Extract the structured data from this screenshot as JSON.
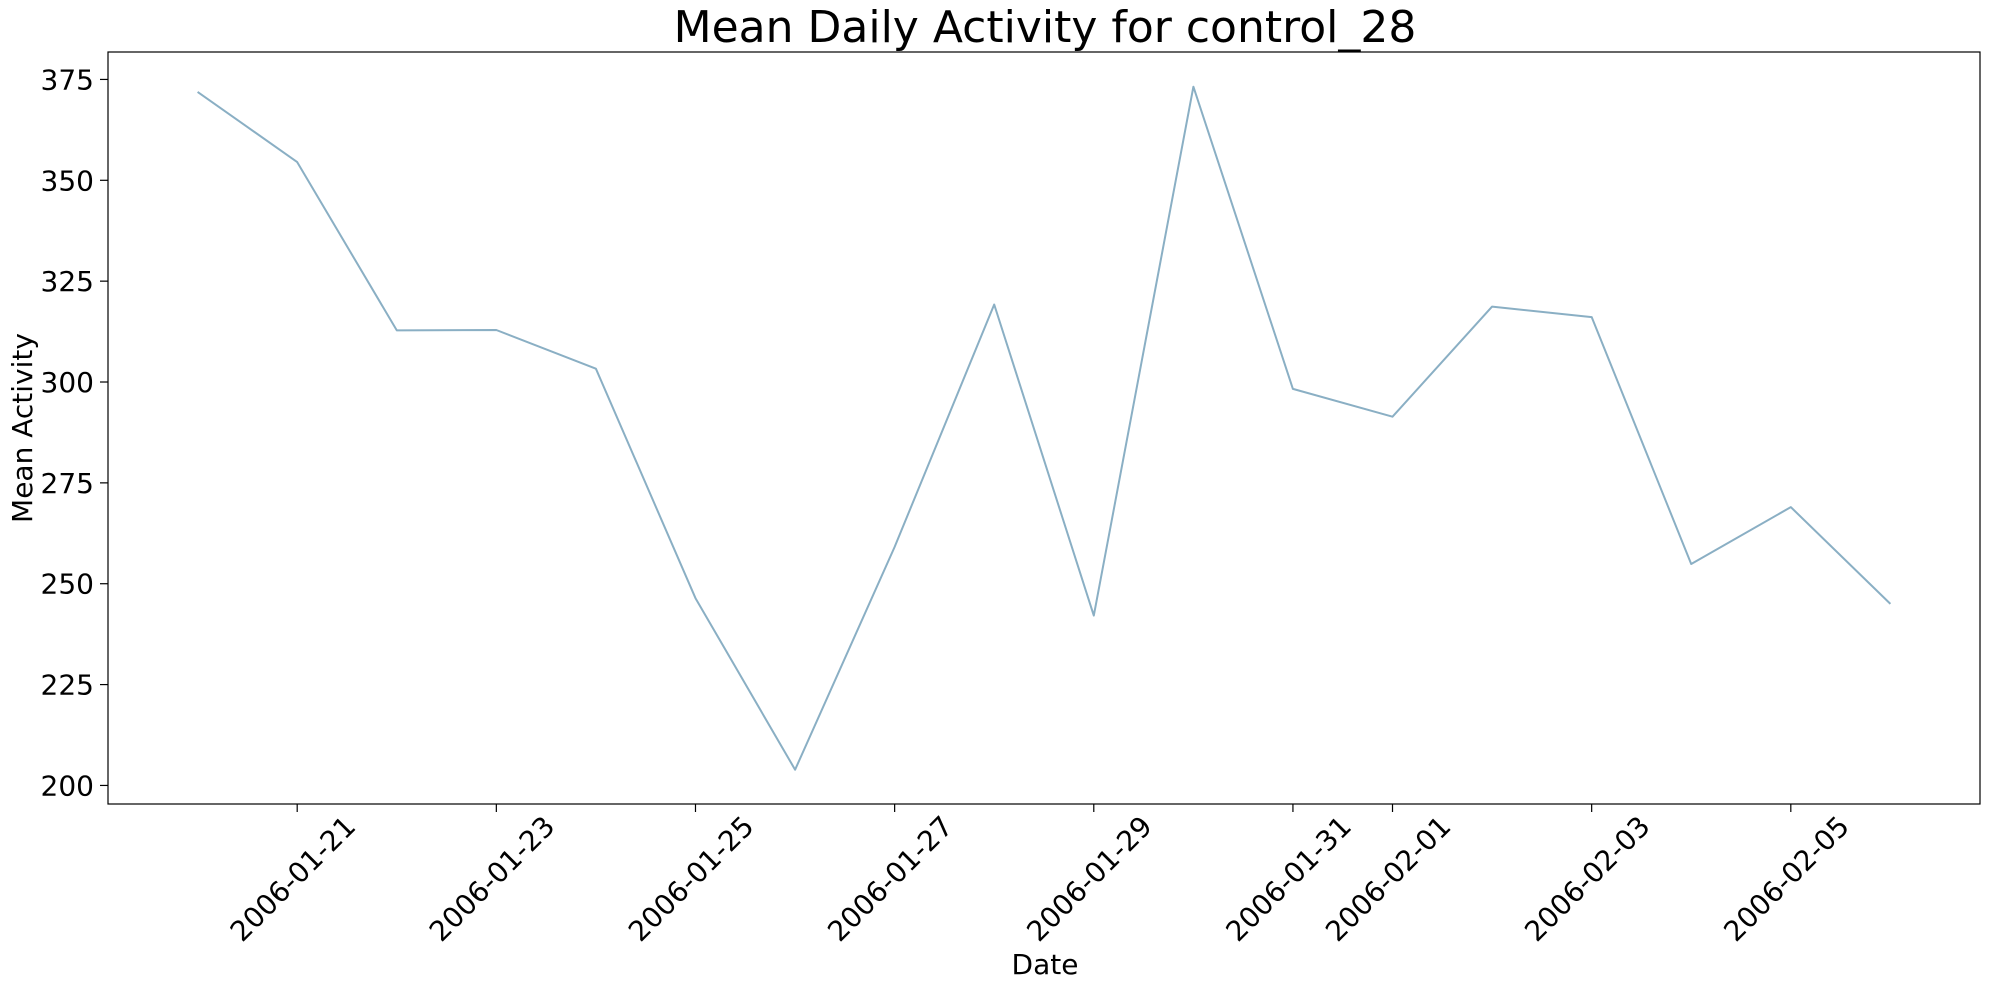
{
  "chart_data": {
    "type": "line",
    "title": "Mean Daily Activity for control_28",
    "xlabel": "Date",
    "ylabel": "Mean Activity",
    "series": [
      {
        "color": "#8aafc4",
        "x": [
          "2006-01-20",
          "2006-01-21",
          "2006-01-22",
          "2006-01-23",
          "2006-01-24",
          "2006-01-25",
          "2006-01-26",
          "2006-01-27",
          "2006-01-28",
          "2006-01-29",
          "2006-01-30",
          "2006-01-31",
          "2006-02-01",
          "2006-02-02",
          "2006-02-03",
          "2006-02-04",
          "2006-02-05",
          "2006-02-06"
        ],
        "values": [
          371.9,
          354.5,
          312.8,
          312.9,
          303.3,
          246.4,
          203.9,
          259.1,
          319.2,
          242.1,
          373.2,
          298.3,
          291.4,
          318.7,
          316.1,
          254.9,
          269.0,
          245.0
        ]
      }
    ],
    "x_ticks": [
      "2006-01-21",
      "2006-01-23",
      "2006-01-25",
      "2006-01-27",
      "2006-01-29",
      "2006-01-31",
      "2006-02-01",
      "2006-02-03",
      "2006-02-05"
    ],
    "y_ticks": [
      200,
      225,
      250,
      275,
      300,
      325,
      350,
      375
    ],
    "xlim": [
      "2006-01-19T02:24",
      "2006-02-06T21:36"
    ],
    "ylim": [
      195.4,
      381.8
    ],
    "grid": false,
    "legend": "none"
  }
}
